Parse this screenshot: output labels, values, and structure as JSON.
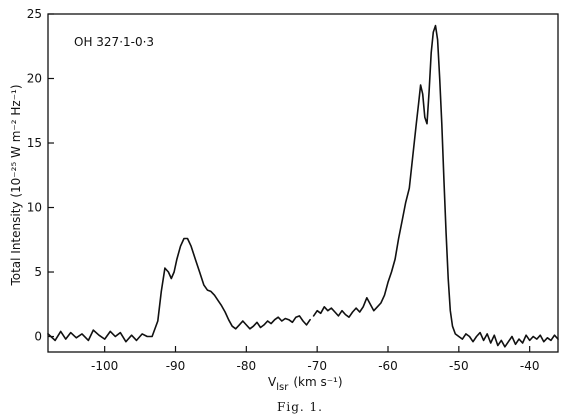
{
  "chart_data": {
    "type": "line",
    "title": "",
    "annotation": "OH 327·1-0·3",
    "xlabel_main": "V",
    "xlabel_sub": "lsr",
    "xlabel_unit": "(km s⁻¹)",
    "ylabel": "Total Intensity (10⁻²⁵ W m⁻² Hz⁻¹)",
    "caption": "Fig. 1.",
    "xlim": [
      -108,
      -36
    ],
    "ylim": [
      -1.2,
      25
    ],
    "x_ticks": [
      -100,
      -90,
      -80,
      -70,
      -60,
      -50,
      -40
    ],
    "x_tick_labels": [
      "-100",
      "-90",
      "-80",
      "-70",
      "-60",
      "-50",
      "-40"
    ],
    "y_ticks": [
      0,
      5,
      10,
      15,
      20,
      25
    ],
    "y_tick_labels": [
      "0",
      "5",
      "10",
      "15",
      "20",
      "25"
    ],
    "grid": false,
    "series": [
      {
        "segments": [
          {
            "x": [
              -108,
              -107,
              -106.2,
              -105.5,
              -104.8,
              -104,
              -103.2,
              -102.3,
              -101.6,
              -100.8,
              -100,
              -99.2,
              -98.5,
              -97.8,
              -97,
              -96.2,
              -95.5,
              -94.7,
              -94,
              -93.3,
              -92.5,
              -92,
              -91.5,
              -91,
              -90.6,
              -90.2,
              -89.8,
              -89.3,
              -88.8,
              -88.3,
              -87.8,
              -87.2,
              -86.6,
              -86,
              -85.5,
              -85,
              -84.5,
              -84,
              -83.5,
              -83,
              -82.5,
              -82,
              -81.5,
              -81,
              -80.5,
              -80,
              -79.5,
              -79,
              -78.5,
              -78,
              -77.5,
              -77,
              -76.5,
              -76,
              -75.5,
              -75,
              -74.5,
              -74,
              -73.5,
              -73,
              -72.5,
              -72,
              -71.5,
              -71
            ],
            "y": [
              0.2,
              -0.3,
              0.4,
              -0.2,
              0.3,
              -0.1,
              0.2,
              -0.3,
              0.5,
              0.1,
              -0.2,
              0.4,
              0.0,
              0.3,
              -0.4,
              0.1,
              -0.3,
              0.2,
              0.0,
              0.0,
              1.2,
              3.5,
              5.3,
              5.0,
              4.5,
              5.0,
              6.0,
              7.0,
              7.6,
              7.6,
              7.0,
              6.0,
              5.0,
              4.0,
              3.6,
              3.5,
              3.2,
              2.8,
              2.4,
              1.9,
              1.3,
              0.8,
              0.6,
              0.9,
              1.2,
              0.9,
              0.6,
              0.8,
              1.1,
              0.7,
              0.9,
              1.2,
              1.0,
              1.3,
              1.5,
              1.2,
              1.4,
              1.3,
              1.1,
              1.5,
              1.6,
              1.2,
              0.9,
              1.3
            ]
          },
          {
            "x": [
              -70.5,
              -70,
              -69.5,
              -69,
              -68.5,
              -68,
              -67.5,
              -67,
              -66.5,
              -66,
              -65.5,
              -65,
              -64.5,
              -64,
              -63.5,
              -63,
              -62.5,
              -62,
              -61.5,
              -61,
              -60.5,
              -60,
              -59.5,
              -59,
              -58.5,
              -58,
              -57.5,
              -57,
              -56.5,
              -56,
              -55.7,
              -55.4,
              -55.1,
              -54.8,
              -54.5,
              -54.2,
              -53.9,
              -53.6,
              -53.3,
              -53,
              -52.7,
              -52.4,
              -52.1,
              -51.8,
              -51.5,
              -51.2,
              -50.9,
              -50.5,
              -50,
              -49.5,
              -49,
              -48.5,
              -48,
              -47.5,
              -47,
              -46.5,
              -46,
              -45.5,
              -45,
              -44.5,
              -44,
              -43.5,
              -43,
              -42.5,
              -42,
              -41.5,
              -41,
              -40.5,
              -40,
              -39.5,
              -39,
              -38.5,
              -38,
              -37.5,
              -37,
              -36.5,
              -36
            ],
            "y": [
              1.6,
              2.0,
              1.8,
              2.3,
              2.0,
              2.2,
              1.9,
              1.6,
              2.0,
              1.7,
              1.5,
              1.9,
              2.2,
              1.9,
              2.3,
              3.0,
              2.5,
              2.0,
              2.3,
              2.6,
              3.2,
              4.2,
              5.0,
              6.0,
              7.6,
              9.0,
              10.4,
              11.5,
              14.0,
              16.5,
              18.0,
              19.5,
              18.8,
              17.0,
              16.5,
              19.0,
              22.0,
              23.6,
              24.1,
              23.0,
              20.0,
              16.5,
              12.0,
              8.0,
              4.5,
              2.0,
              0.8,
              0.2,
              0.0,
              -0.2,
              0.2,
              0.0,
              -0.4,
              0.0,
              0.3,
              -0.3,
              0.2,
              -0.5,
              0.1,
              -0.7,
              -0.3,
              -0.8,
              -0.4,
              0.0,
              -0.6,
              -0.2,
              -0.5,
              0.1,
              -0.3,
              0.0,
              -0.2,
              0.1,
              -0.4,
              -0.1,
              -0.3,
              0.1,
              -0.2
            ]
          }
        ]
      }
    ]
  }
}
